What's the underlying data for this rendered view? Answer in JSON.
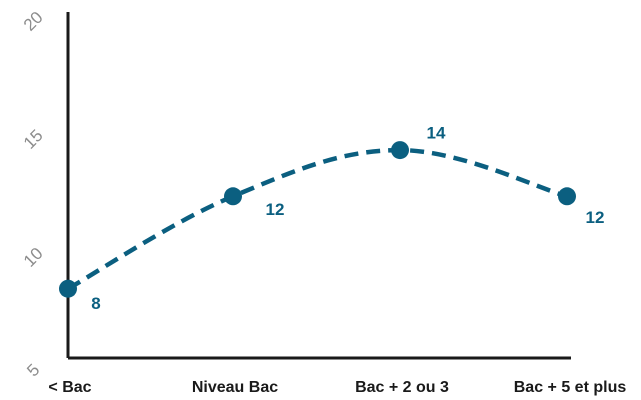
{
  "chart_data": {
    "type": "line",
    "categories": [
      "< Bac",
      "Niveau Bac",
      "Bac + 2 ou 3",
      "Bac + 5 et plus"
    ],
    "series": [
      {
        "values": [
          8,
          12,
          14,
          12
        ]
      }
    ],
    "data_labels": [
      "8",
      "12",
      "14",
      "12"
    ],
    "ylim": [
      5,
      20
    ],
    "yticks": [
      "5",
      "10",
      "15",
      "20"
    ],
    "line_style": "dashed-smooth",
    "grid": false,
    "legend": "none",
    "colors": {
      "series": "#0b5f80",
      "axis": "#1a1a1a",
      "tick_text": "#8c8c8c"
    }
  }
}
